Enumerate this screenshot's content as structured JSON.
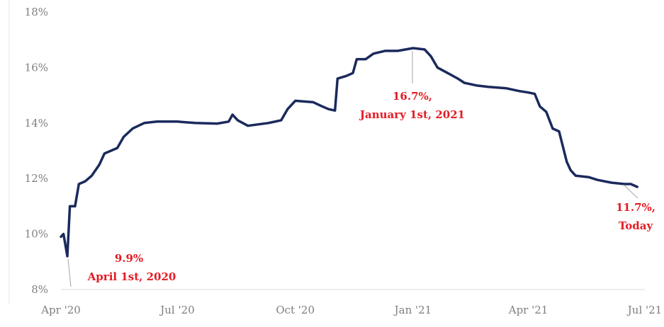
{
  "chart_data": {
    "type": "line",
    "x_axis": {
      "ticks": [
        {
          "date": "2020-04-01",
          "label": "Apr '20"
        },
        {
          "date": "2020-07-01",
          "label": "Jul '20"
        },
        {
          "date": "2020-10-01",
          "label": "Oct '20"
        },
        {
          "date": "2021-01-01",
          "label": "Jan '21"
        },
        {
          "date": "2021-04-01",
          "label": "Apr '21"
        },
        {
          "date": "2021-07-01",
          "label": "Jul '21"
        }
      ],
      "range": [
        "2020-04-01",
        "2021-07-01"
      ]
    },
    "y_axis": {
      "ticks": [
        {
          "value": 8,
          "label": "8%"
        },
        {
          "value": 10,
          "label": "10%"
        },
        {
          "value": 12,
          "label": "12%"
        },
        {
          "value": 14,
          "label": "14%"
        },
        {
          "value": 16,
          "label": "16%"
        },
        {
          "value": 18,
          "label": "18%"
        }
      ],
      "range": [
        8,
        18
      ]
    },
    "grid": false,
    "series": [
      {
        "color": "#1b2a5c",
        "points": [
          [
            "2020-04-01",
            9.9
          ],
          [
            "2020-04-03",
            10.0
          ],
          [
            "2020-04-06",
            9.2
          ],
          [
            "2020-04-08",
            11.0
          ],
          [
            "2020-04-12",
            11.0
          ],
          [
            "2020-04-15",
            11.8
          ],
          [
            "2020-04-20",
            11.9
          ],
          [
            "2020-04-25",
            12.1
          ],
          [
            "2020-05-01",
            12.5
          ],
          [
            "2020-05-05",
            12.9
          ],
          [
            "2020-05-10",
            13.0
          ],
          [
            "2020-05-15",
            13.1
          ],
          [
            "2020-05-20",
            13.5
          ],
          [
            "2020-05-27",
            13.8
          ],
          [
            "2020-06-05",
            14.0
          ],
          [
            "2020-06-15",
            14.05
          ],
          [
            "2020-07-01",
            14.05
          ],
          [
            "2020-07-15",
            14.0
          ],
          [
            "2020-08-01",
            13.98
          ],
          [
            "2020-08-10",
            14.05
          ],
          [
            "2020-08-13",
            14.3
          ],
          [
            "2020-08-17",
            14.1
          ],
          [
            "2020-08-25",
            13.9
          ],
          [
            "2020-09-10",
            14.0
          ],
          [
            "2020-09-20",
            14.1
          ],
          [
            "2020-09-25",
            14.5
          ],
          [
            "2020-10-01",
            14.8
          ],
          [
            "2020-10-15",
            14.75
          ],
          [
            "2020-10-22",
            14.6
          ],
          [
            "2020-10-27",
            14.5
          ],
          [
            "2020-11-01",
            14.45
          ],
          [
            "2020-11-03",
            15.6
          ],
          [
            "2020-11-10",
            15.7
          ],
          [
            "2020-11-15",
            15.8
          ],
          [
            "2020-11-18",
            16.3
          ],
          [
            "2020-11-25",
            16.3
          ],
          [
            "2020-12-01",
            16.5
          ],
          [
            "2020-12-10",
            16.6
          ],
          [
            "2020-12-20",
            16.6
          ],
          [
            "2021-01-01",
            16.7
          ],
          [
            "2021-01-10",
            16.65
          ],
          [
            "2021-01-15",
            16.4
          ],
          [
            "2021-01-20",
            16.0
          ],
          [
            "2021-01-28",
            15.8
          ],
          [
            "2021-02-05",
            15.6
          ],
          [
            "2021-02-10",
            15.45
          ],
          [
            "2021-02-20",
            15.35
          ],
          [
            "2021-03-01",
            15.3
          ],
          [
            "2021-03-15",
            15.25
          ],
          [
            "2021-03-25",
            15.15
          ],
          [
            "2021-04-01",
            15.1
          ],
          [
            "2021-04-06",
            15.05
          ],
          [
            "2021-04-10",
            14.6
          ],
          [
            "2021-04-15",
            14.4
          ],
          [
            "2021-04-20",
            13.8
          ],
          [
            "2021-04-25",
            13.7
          ],
          [
            "2021-05-01",
            12.6
          ],
          [
            "2021-05-04",
            12.3
          ],
          [
            "2021-05-08",
            12.1
          ],
          [
            "2021-05-18",
            12.05
          ],
          [
            "2021-05-25",
            11.95
          ],
          [
            "2021-06-05",
            11.85
          ],
          [
            "2021-06-15",
            11.8
          ],
          [
            "2021-06-20",
            11.8
          ],
          [
            "2021-06-25",
            11.7
          ]
        ]
      }
    ],
    "annotations": [
      {
        "line1": "9.9%",
        "line2": "April 1st, 2020",
        "date": "2020-04-01",
        "value": 9.9
      },
      {
        "line1": "16.7%,",
        "line2": "January 1st, 2021",
        "date": "2021-01-01",
        "value": 16.7
      },
      {
        "line1": "11.7%,",
        "line2": "Today",
        "date": "2021-06-25",
        "value": 11.7
      }
    ]
  }
}
